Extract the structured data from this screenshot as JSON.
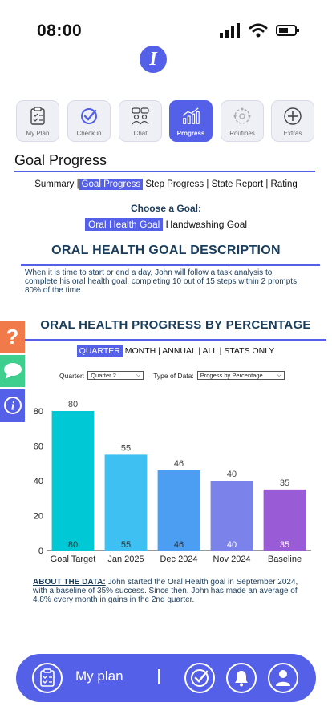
{
  "status_bar": {
    "time": "08:00"
  },
  "nav_tabs": [
    {
      "label": "My Plan",
      "icon": "clipboard-icon",
      "active": false
    },
    {
      "label": "Check in",
      "icon": "check-circle-icon",
      "active": false
    },
    {
      "label": "Chat",
      "icon": "chat-people-icon",
      "active": false
    },
    {
      "label": "Progress",
      "icon": "bar-chart-icon",
      "active": true
    },
    {
      "label": "Routines",
      "icon": "routines-icon",
      "active": false
    },
    {
      "label": "Extras",
      "icon": "plus-circle-icon",
      "active": false
    }
  ],
  "page_title": "Goal Progress",
  "sub_tabs": {
    "summary": "Summary",
    "goal_progress": "Goal Progress",
    "step_progress": "Step Progress",
    "state_report": "State Report",
    "rating": "Rating",
    "selected": "Goal Progress"
  },
  "choose_goal": {
    "label": "Choose a Goal:",
    "options": [
      "Oral Health Goal",
      "Handwashing Goal"
    ],
    "selected": "Oral Health Goal"
  },
  "description": {
    "heading": "ORAL HEALTH GOAL DESCRIPTION",
    "text": "When it is time to start or end a day, John will follow a task analysis to complete his oral health goal, completing 10 out of 15 steps within 2 prompts 80% of the time."
  },
  "side_buttons": [
    {
      "icon": "question-icon",
      "color": "#f07a4a"
    },
    {
      "icon": "chat-bubble-icon",
      "color": "#3ecf8e"
    },
    {
      "icon": "info-icon",
      "color": "#5560e8"
    }
  ],
  "progress": {
    "heading": "ORAL HEALTH PROGRESS BY PERCENTAGE",
    "period_tabs": {
      "quarter": "QUARTER",
      "month": "MONTH",
      "annual": "ANNUAL",
      "all": "ALL",
      "stats_only": "STATS ONLY",
      "selected": "QUARTER"
    },
    "filters": {
      "quarter_label": "Quarter:",
      "quarter_value": "Quarter 2",
      "type_label": "Type of Data:",
      "type_value": "Progess by Percentage"
    }
  },
  "chart_data": {
    "type": "bar",
    "categories": [
      "Goal Target",
      "Jan 2025",
      "Dec 2024",
      "Nov 2024",
      "Baseline"
    ],
    "values": [
      80,
      55,
      46,
      40,
      35
    ],
    "colors": [
      "#00c9d6",
      "#3ec1f2",
      "#4b9ef2",
      "#7b82ea",
      "#9a5bd6"
    ],
    "ylim": [
      0,
      80
    ],
    "yticks": [
      0,
      20,
      40,
      60,
      80
    ],
    "grid": false,
    "title": "",
    "xlabel": "",
    "ylabel": ""
  },
  "about": {
    "label": "ABOUT THE DATA:",
    "text": " John started the Oral Health goal in September 2024, with a baseline of 35% success.  Since then, John has made an average of 4.8% every month in gains in the 2nd quarter."
  },
  "bottom_bar": {
    "label": "My plan",
    "separator": "|",
    "icons": [
      "clipboard-icon",
      "check-circle-icon",
      "bell-icon",
      "user-icon"
    ]
  },
  "colors": {
    "accent": "#5560e8",
    "heading": "#1a3d5c"
  }
}
